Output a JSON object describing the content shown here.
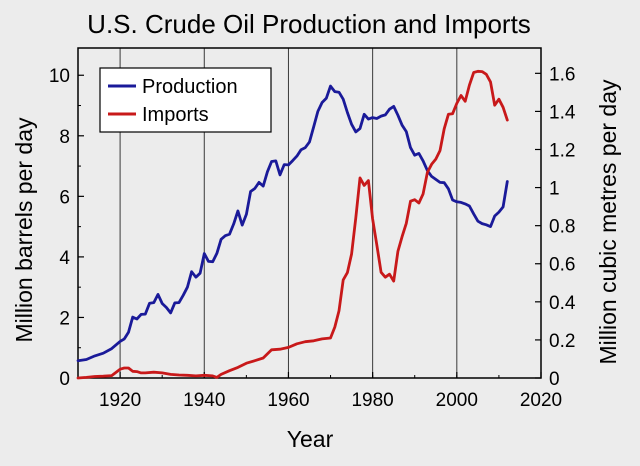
{
  "chart_data": {
    "type": "line",
    "title": "U.S. Crude Oil Production and Imports",
    "xlabel": "Year",
    "ylabel": "Million barrels per day",
    "y2label": "Million cubic metres per day",
    "xlim": [
      1910,
      2020
    ],
    "ylim": [
      0,
      10.9
    ],
    "y2lim": [
      0,
      1.733
    ],
    "xticks": [
      1920,
      1940,
      1960,
      1980,
      2000,
      2020
    ],
    "yticks": [
      0,
      2,
      4,
      6,
      8,
      10
    ],
    "y2ticks": [
      0,
      0.2,
      0.4,
      0.6,
      0.8,
      1,
      1.2,
      1.4,
      1.6
    ],
    "y2tick_labels": [
      "0",
      "0.2",
      "0.4",
      "0.6",
      "0.8",
      "1",
      "1.2",
      "1.4",
      "1.6"
    ],
    "grid": "vertical lines at x ticks",
    "legend_position": "top-left",
    "series": [
      {
        "name": "Production",
        "color": "#1a1a99",
        "x": [
          1910,
          1912,
          1914,
          1916,
          1918,
          1920,
          1921,
          1922,
          1923,
          1924,
          1925,
          1926,
          1927,
          1928,
          1929,
          1930,
          1931,
          1932,
          1933,
          1934,
          1935,
          1936,
          1937,
          1938,
          1939,
          1940,
          1941,
          1942,
          1943,
          1944,
          1945,
          1946,
          1947,
          1948,
          1949,
          1950,
          1951,
          1952,
          1953,
          1954,
          1955,
          1956,
          1957,
          1958,
          1959,
          1960,
          1961,
          1962,
          1963,
          1964,
          1965,
          1966,
          1967,
          1968,
          1969,
          1970,
          1971,
          1972,
          1973,
          1974,
          1975,
          1976,
          1977,
          1978,
          1979,
          1980,
          1981,
          1982,
          1983,
          1984,
          1985,
          1986,
          1987,
          1988,
          1989,
          1990,
          1991,
          1992,
          1993,
          1994,
          1995,
          1996,
          1997,
          1998,
          1999,
          2000,
          2001,
          2002,
          2003,
          2004,
          2005,
          2006,
          2007,
          2008,
          2009,
          2010,
          2011,
          2012
        ],
        "values": [
          0.57,
          0.61,
          0.73,
          0.82,
          0.97,
          1.21,
          1.29,
          1.51,
          2.01,
          1.95,
          2.1,
          2.11,
          2.47,
          2.49,
          2.76,
          2.46,
          2.33,
          2.15,
          2.48,
          2.49,
          2.73,
          3.0,
          3.51,
          3.33,
          3.46,
          4.11,
          3.85,
          3.84,
          4.12,
          4.58,
          4.7,
          4.75,
          5.09,
          5.52,
          5.05,
          5.41,
          6.16,
          6.26,
          6.46,
          6.34,
          6.81,
          7.15,
          7.17,
          6.71,
          7.05,
          7.04,
          7.18,
          7.33,
          7.54,
          7.61,
          7.8,
          8.3,
          8.81,
          9.1,
          9.24,
          9.64,
          9.46,
          9.44,
          9.21,
          8.77,
          8.38,
          8.13,
          8.24,
          8.71,
          8.55,
          8.6,
          8.57,
          8.65,
          8.69,
          8.88,
          8.97,
          8.68,
          8.35,
          8.14,
          7.61,
          7.36,
          7.42,
          7.17,
          6.85,
          6.66,
          6.56,
          6.46,
          6.45,
          6.25,
          5.88,
          5.82,
          5.8,
          5.75,
          5.68,
          5.42,
          5.18,
          5.1,
          5.06,
          5.0,
          5.35,
          5.48,
          5.65,
          6.49
        ]
      },
      {
        "name": "Imports",
        "color": "#c8191a",
        "x": [
          1910,
          1912,
          1914,
          1916,
          1918,
          1920,
          1921,
          1922,
          1923,
          1924,
          1925,
          1926,
          1928,
          1930,
          1932,
          1934,
          1936,
          1938,
          1940,
          1942,
          1943,
          1944,
          1946,
          1948,
          1950,
          1952,
          1954,
          1956,
          1958,
          1960,
          1962,
          1964,
          1966,
          1968,
          1970,
          1971,
          1972,
          1973,
          1974,
          1975,
          1976,
          1977,
          1978,
          1979,
          1980,
          1981,
          1982,
          1983,
          1984,
          1985,
          1986,
          1987,
          1988,
          1989,
          1990,
          1991,
          1992,
          1993,
          1994,
          1995,
          1996,
          1997,
          1998,
          1999,
          2000,
          2001,
          2002,
          2003,
          2004,
          2005,
          2006,
          2007,
          2008,
          2009,
          2010,
          2011,
          2012
        ],
        "values": [
          0.0,
          0.02,
          0.05,
          0.06,
          0.08,
          0.29,
          0.33,
          0.33,
          0.22,
          0.21,
          0.17,
          0.17,
          0.19,
          0.17,
          0.12,
          0.1,
          0.09,
          0.07,
          0.09,
          0.07,
          0.02,
          0.12,
          0.24,
          0.35,
          0.49,
          0.57,
          0.66,
          0.93,
          0.95,
          1.01,
          1.13,
          1.2,
          1.23,
          1.29,
          1.32,
          1.68,
          2.22,
          3.24,
          3.48,
          4.1,
          5.29,
          6.61,
          6.36,
          6.52,
          5.26,
          4.4,
          3.49,
          3.33,
          3.43,
          3.2,
          4.18,
          4.67,
          5.11,
          5.84,
          5.89,
          5.78,
          6.08,
          6.79,
          7.06,
          7.23,
          7.51,
          8.23,
          8.71,
          8.73,
          9.07,
          9.33,
          9.14,
          9.67,
          10.09,
          10.13,
          10.12,
          10.03,
          9.78,
          9.01,
          9.21,
          8.94,
          8.52
        ]
      }
    ]
  }
}
